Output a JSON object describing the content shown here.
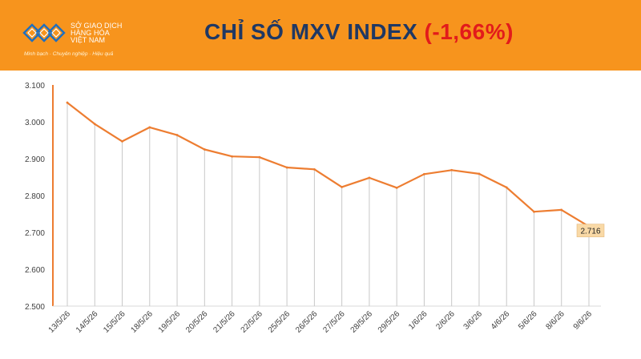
{
  "header": {
    "logo_lines": [
      "SỞ GIAO DỊCH",
      "HÀNG HÓA",
      "VIỆT NAM"
    ],
    "tagline": "Minh bạch · Chuyên nghiệp · Hiệu quả",
    "title": "CHỈ SỐ MXV INDEX",
    "change": "(-1,66%)"
  },
  "colors": {
    "header_bg": "#f7941d",
    "title": "#1f3864",
    "change": "#e21b1b",
    "line": "#ed7d31",
    "label_bg": "#f9d9a6"
  },
  "chart_data": {
    "type": "line",
    "title": "",
    "xlabel": "",
    "ylabel": "",
    "categories": [
      "13/5/26",
      "14/5/26",
      "15/5/26",
      "18/5/26",
      "19/5/26",
      "20/5/26",
      "21/5/26",
      "22/5/26",
      "25/5/26",
      "26/5/26",
      "27/5/26",
      "28/5/26",
      "29/5/26",
      "1/6/26",
      "2/6/26",
      "3/6/26",
      "4/6/26",
      "5/6/26",
      "8/6/26",
      "9/6/26"
    ],
    "values": [
      3052,
      2994,
      2947,
      2985,
      2964,
      2925,
      2906,
      2904,
      2876,
      2871,
      2823,
      2848,
      2821,
      2858,
      2869,
      2859,
      2822,
      2756,
      2761,
      2716
    ],
    "ylim": [
      2500,
      3100
    ],
    "yticks": [
      2500,
      2600,
      2700,
      2800,
      2900,
      3000,
      3100
    ],
    "ytick_labels": [
      "2.500",
      "2.600",
      "2.700",
      "2.800",
      "2.900",
      "3.000",
      "3.100"
    ],
    "last_label": "2.716",
    "grid": false,
    "drop_lines": true
  }
}
